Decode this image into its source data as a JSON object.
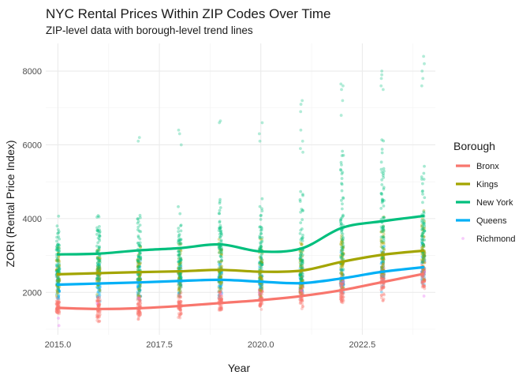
{
  "chart_data": {
    "type": "scatter",
    "title": "NYC Rental Prices Within ZIP Codes Over Time",
    "subtitle": "ZIP-level data with borough-level trend lines",
    "xlabel": "Year",
    "ylabel": "ZORI (Rental Price Index)",
    "xlim": [
      2014.7,
      2024.3
    ],
    "ylim": [
      850,
      8750
    ],
    "xticks": [
      2015.0,
      2017.5,
      2020.0,
      2022.5
    ],
    "xtick_labels": [
      "2015.0",
      "2017.5",
      "2020.0",
      "2022.5"
    ],
    "yticks": [
      2000,
      4000,
      6000,
      8000
    ],
    "ytick_labels": [
      "2000",
      "4000",
      "6000",
      "8000"
    ],
    "grid": true,
    "legend": {
      "title": "Borough",
      "position": "right"
    },
    "years": [
      2015,
      2016,
      2017,
      2018,
      2019,
      2020,
      2021,
      2022,
      2023,
      2024
    ],
    "series": [
      {
        "name": "Bronx",
        "color": "#F8766D",
        "trend": [
          1580,
          1550,
          1570,
          1630,
          1710,
          1790,
          1900,
          2060,
          2280,
          2500
        ],
        "range": [
          [
            1400,
            1900
          ],
          [
            1150,
            1950
          ],
          [
            1250,
            2000
          ],
          [
            1250,
            2050
          ],
          [
            1350,
            2100
          ],
          [
            1400,
            2150
          ],
          [
            1450,
            2300
          ],
          [
            1500,
            2600
          ],
          [
            1650,
            2900
          ],
          [
            1900,
            3200
          ]
        ]
      },
      {
        "name": "Kings",
        "color": "#A3A500",
        "trend": [
          2490,
          2520,
          2550,
          2570,
          2610,
          2560,
          2590,
          2830,
          3020,
          3130
        ],
        "range": [
          [
            1800,
            3400
          ],
          [
            1750,
            3300
          ],
          [
            1800,
            3400
          ],
          [
            1850,
            3500
          ],
          [
            1900,
            3600
          ],
          [
            1850,
            3500
          ],
          [
            1900,
            3700
          ],
          [
            2000,
            4000
          ],
          [
            2200,
            4200
          ],
          [
            2300,
            4300
          ]
        ]
      },
      {
        "name": "New York",
        "color": "#00BF7D",
        "trend": [
          3030,
          3050,
          3140,
          3200,
          3300,
          3110,
          3190,
          3750,
          3930,
          4070
        ],
        "range": [
          [
            1900,
            4200
          ],
          [
            1950,
            4300
          ],
          [
            2000,
            4300
          ],
          [
            2050,
            4350
          ],
          [
            2100,
            4800
          ],
          [
            2000,
            4600
          ],
          [
            2100,
            5200
          ],
          [
            2300,
            6300
          ],
          [
            2400,
            6600
          ],
          [
            2600,
            5800
          ]
        ],
        "outliers": [
          [],
          [],
          [
            6100,
            6200
          ],
          [
            6000,
            6300,
            6400
          ],
          [
            6600,
            6650
          ],
          [
            6300,
            6600,
            6100
          ],
          [
            5800,
            5900,
            6100,
            6400,
            6900,
            7100,
            7200
          ],
          [
            6800,
            7200,
            7500,
            7600,
            7650
          ],
          [
            7500,
            7600,
            7800,
            7900,
            8000
          ],
          [
            7600,
            7800,
            8000,
            8200,
            8400
          ]
        ]
      },
      {
        "name": "Queens",
        "color": "#00B0F6",
        "trend": [
          2210,
          2240,
          2270,
          2310,
          2340,
          2290,
          2250,
          2380,
          2560,
          2680
        ],
        "range": [
          [
            1700,
            2900
          ],
          [
            1700,
            2900
          ],
          [
            1750,
            2950
          ],
          [
            1800,
            3000
          ],
          [
            1850,
            3050
          ],
          [
            1800,
            3000
          ],
          [
            1800,
            3100
          ],
          [
            1900,
            3300
          ],
          [
            2000,
            3500
          ],
          [
            2100,
            3600
          ]
        ]
      },
      {
        "name": "Richmond",
        "color": "#E76BF3",
        "trend": [],
        "points": [
          [
            2015,
            1100
          ],
          [
            2015,
            1300
          ],
          [
            2016,
            1700
          ],
          [
            2017,
            1850
          ],
          [
            2018,
            1900
          ],
          [
            2019,
            1950
          ],
          [
            2020,
            2000
          ],
          [
            2021,
            2050
          ],
          [
            2022,
            2300
          ],
          [
            2023,
            2450
          ],
          [
            2024,
            2550
          ],
          [
            2024,
            1900
          ]
        ]
      }
    ]
  }
}
